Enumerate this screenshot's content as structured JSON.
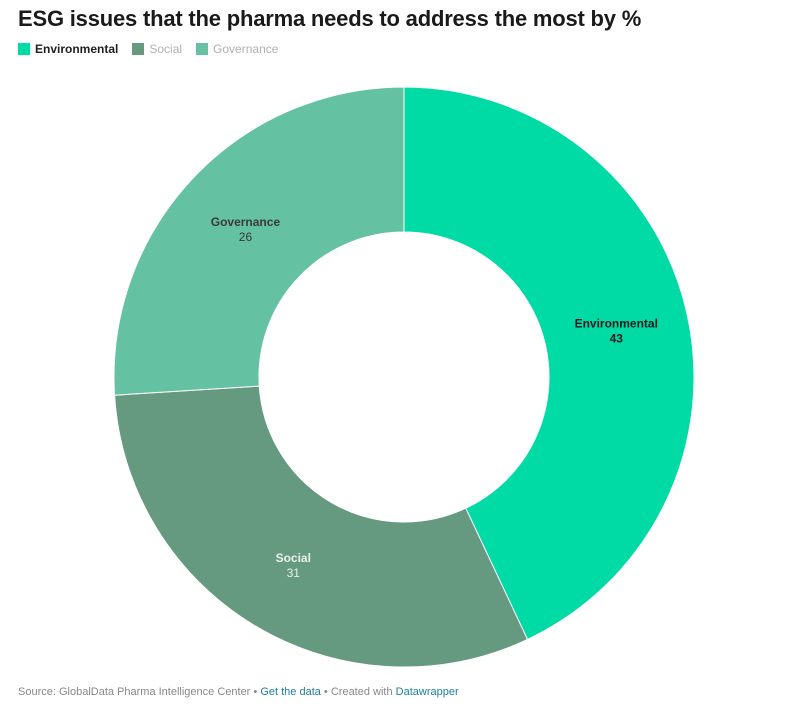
{
  "title": "ESG issues that the pharma needs to address the most by %",
  "legend": [
    {
      "label": "Environmental",
      "color": "#00dba6",
      "state": "active"
    },
    {
      "label": "Social",
      "color": "#669a80",
      "state": "dim"
    },
    {
      "label": "Governance",
      "color": "#64c1a2",
      "state": "dim"
    }
  ],
  "chart_data": {
    "type": "pie",
    "title": "ESG issues that the pharma needs to address the most by %",
    "categories": [
      "Environmental",
      "Social",
      "Governance"
    ],
    "values": [
      43,
      31,
      26
    ],
    "colors": [
      "#00dba6",
      "#669a80",
      "#64c1a2"
    ],
    "label_colors": [
      "#1a1a1a",
      "#e8f0ec",
      "#3a3a3a"
    ],
    "donut": true,
    "legend_position": "top-left"
  },
  "footer": {
    "source": "Source: GlobalData Pharma Intelligence Center",
    "separator": " • ",
    "get_data": "Get the data",
    "created_with": "Created with",
    "tool": "Datawrapper"
  }
}
